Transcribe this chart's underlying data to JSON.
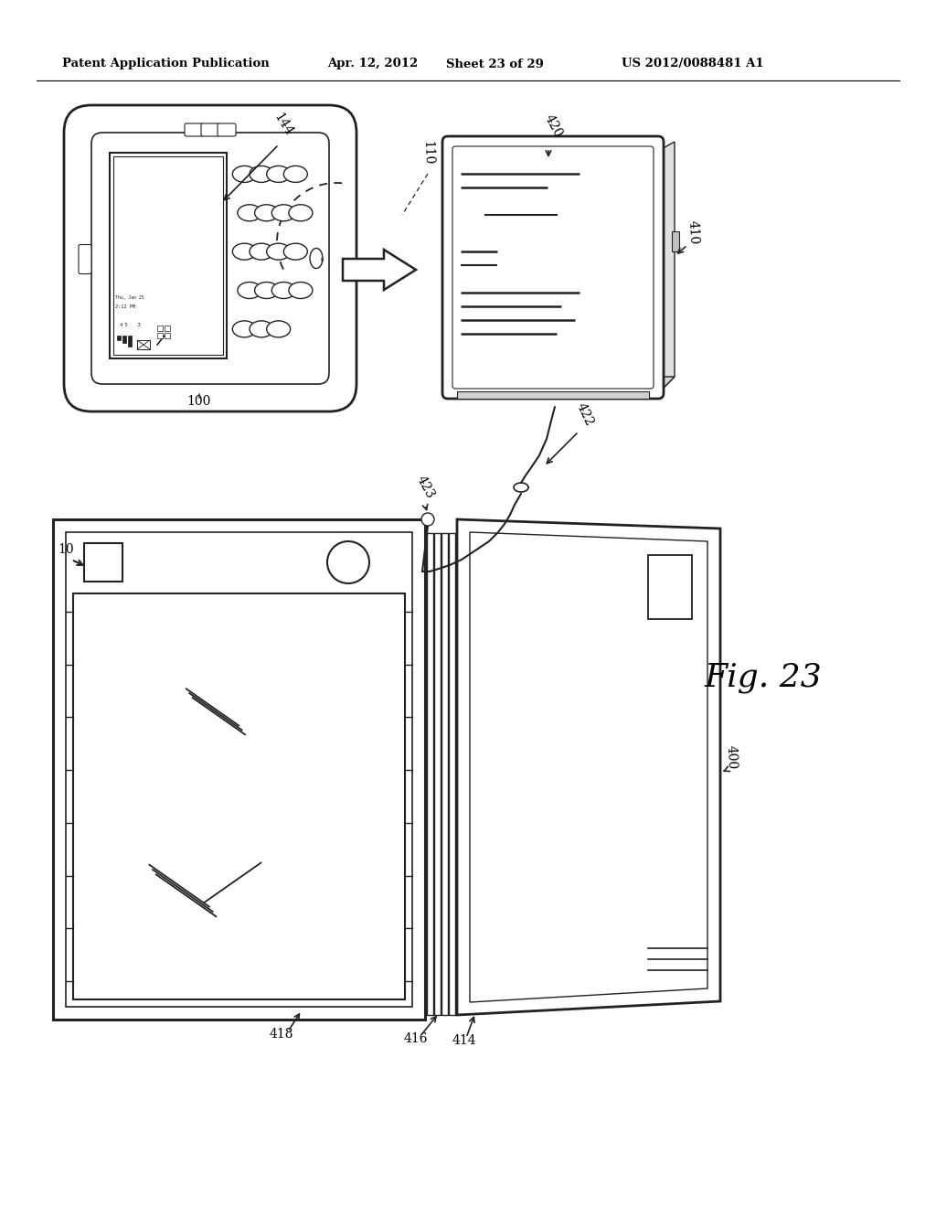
{
  "bg_color": "#ffffff",
  "header_text": "Patent Application Publication",
  "header_date": "Apr. 12, 2012",
  "header_sheet": "Sheet 23 of 29",
  "header_patent": "US 2012/0088481 A1",
  "fig_label": "Fig. 23",
  "label_10": "10",
  "label_100": "100",
  "label_110": "110",
  "label_144": "144",
  "label_400": "400",
  "label_410": "410",
  "label_414": "414",
  "label_416": "416",
  "label_418": "418",
  "label_420": "420",
  "label_422": "422",
  "label_423": "423"
}
